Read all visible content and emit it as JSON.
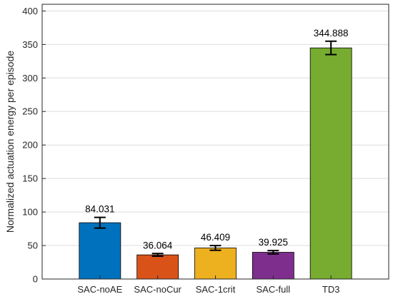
{
  "chart_data": {
    "type": "bar",
    "title": "",
    "xlabel": "",
    "ylabel": "Normalized actuation energy per episode",
    "categories": [
      "SAC-noAE",
      "SAC-noCur",
      "SAC-1crit",
      "SAC-full",
      "TD3"
    ],
    "values": [
      84.031,
      36.064,
      46.409,
      39.925,
      344.888
    ],
    "value_labels": [
      "84.031",
      "36.064",
      "46.409",
      "39.925",
      "344.888"
    ],
    "error": [
      8,
      2,
      3.5,
      2.5,
      10
    ],
    "colors": [
      "#0072BD",
      "#D95319",
      "#EDB120",
      "#7E2F8E",
      "#77AC30"
    ],
    "ylim": [
      0,
      410
    ],
    "yticks": [
      0,
      50,
      100,
      150,
      200,
      250,
      300,
      350,
      400
    ],
    "grid": true,
    "legend": "none"
  }
}
